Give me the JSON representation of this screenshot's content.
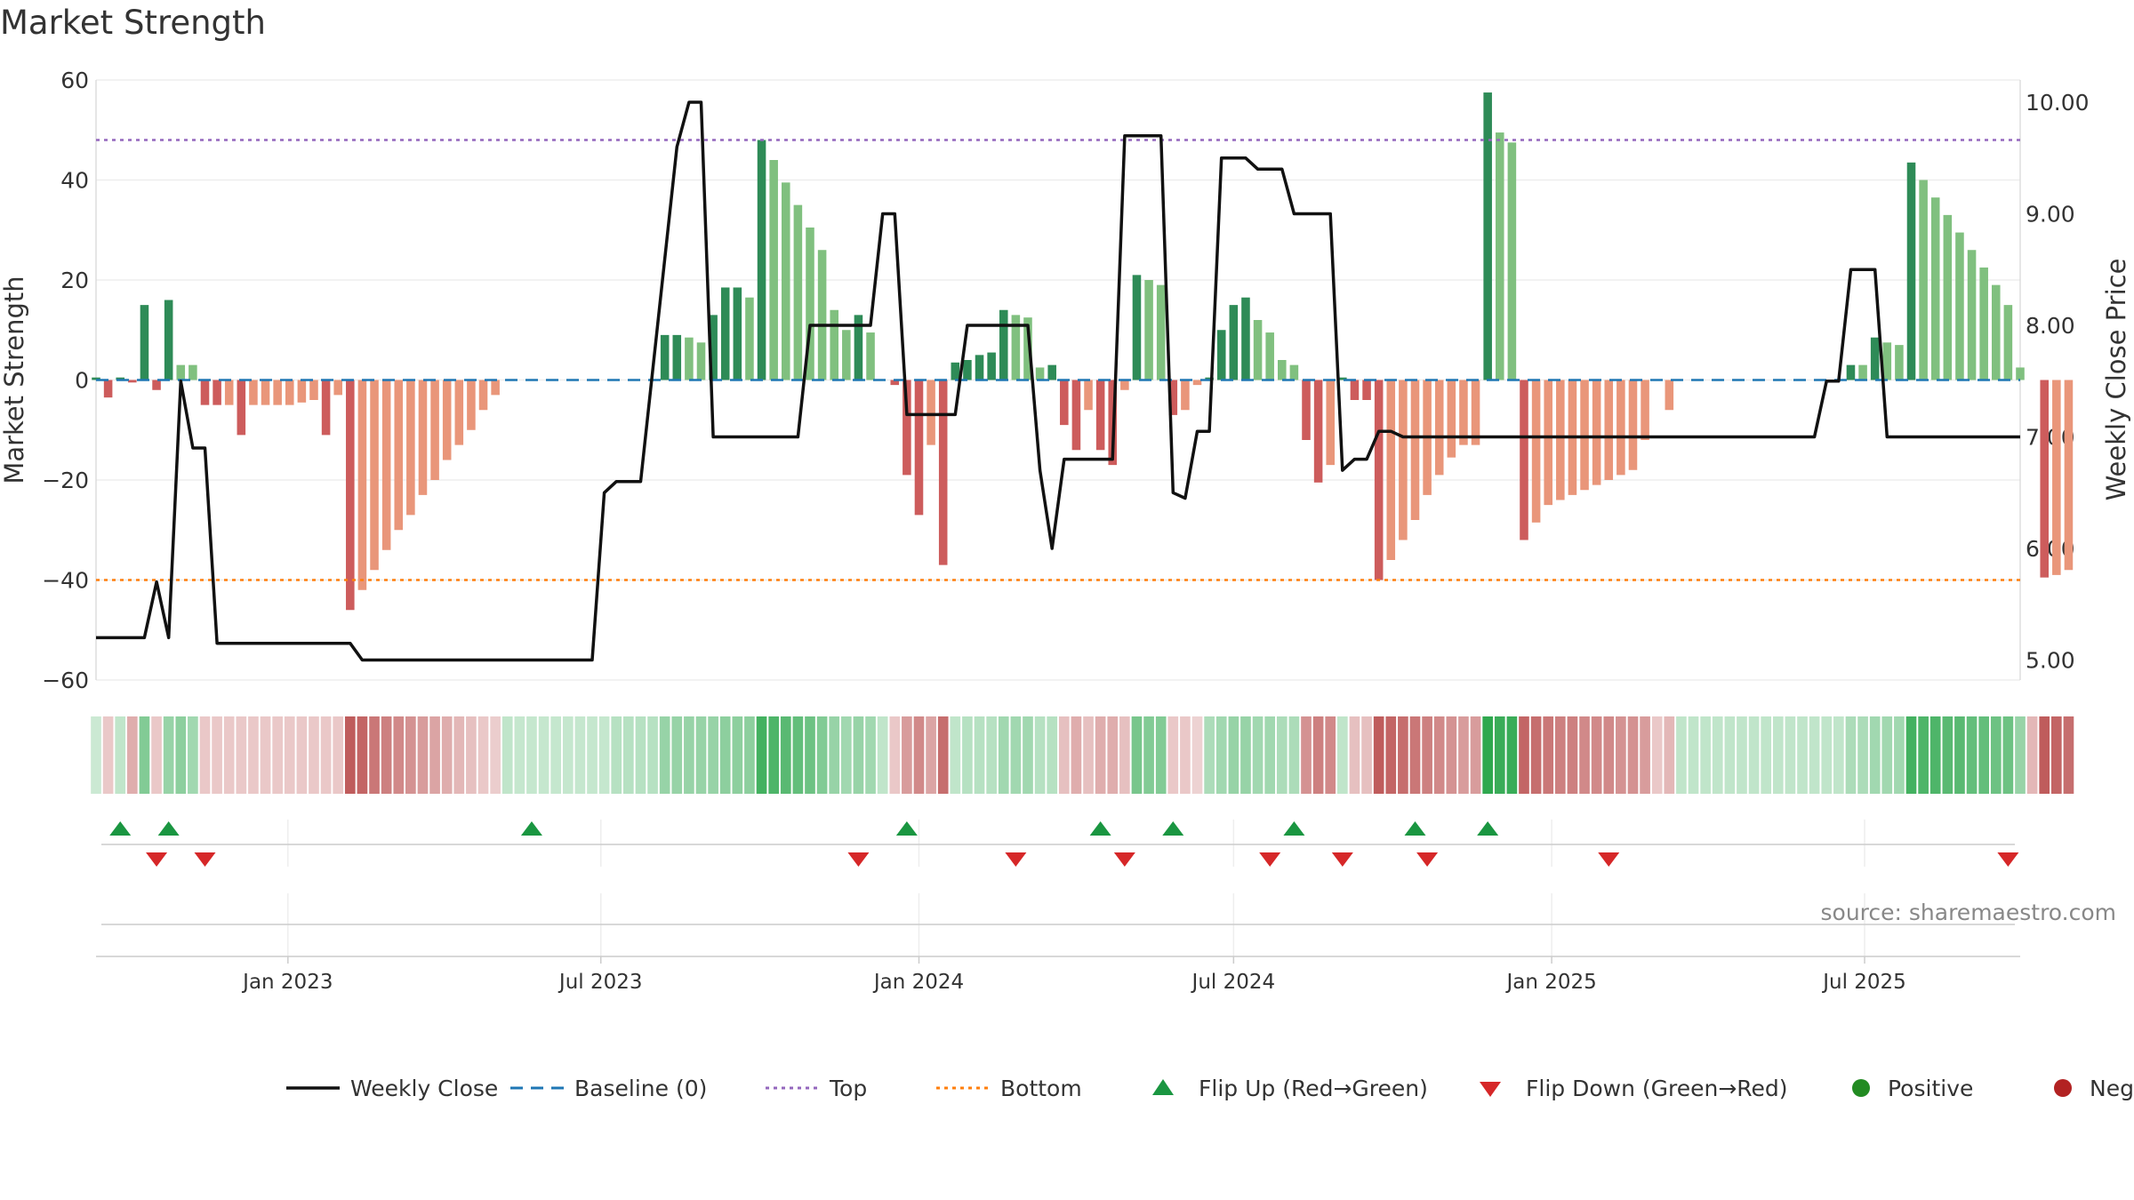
{
  "title": "Market Strength",
  "source": "source: sharemaestro.com",
  "colors": {
    "strong_green": "#2e8b57",
    "light_green": "#80c07f",
    "strong_red": "#cd5c5c",
    "light_red": "#e9967a",
    "weekly_close": "#111111",
    "baseline": "#1f77b4",
    "top": "#9467bd",
    "bottom": "#ff7f0e",
    "flip_up": "#1a9641",
    "flip_down": "#d62728",
    "positive": "#228b22",
    "negative": "#b22222"
  },
  "chart_data": {
    "type": "bar",
    "title": "Market Strength",
    "ylabel": "Market Strength",
    "y2label": "Weekly Close Price",
    "ylim": [
      -60,
      60
    ],
    "y2lim": [
      4.85,
      10.2
    ],
    "y_ticks": [
      60,
      40,
      20,
      0,
      -20,
      -40,
      -60
    ],
    "y_tick_labels": [
      "60",
      "40",
      "20",
      "0",
      "−20",
      "−40",
      "−60"
    ],
    "y2_ticks": [
      10,
      9,
      8,
      7,
      6,
      5
    ],
    "y2_tick_labels": [
      "10.00",
      "9.00",
      "8.00",
      "7.00",
      "6.00",
      "5.00"
    ],
    "x_range": [
      "2022-09-12",
      "2025-09-29"
    ],
    "x_ticks": [
      "2023-01-01",
      "2023-07-01",
      "2024-01-01",
      "2024-07-01",
      "2025-01-01",
      "2025-07-01"
    ],
    "x_tick_labels": [
      "Jan 2023",
      "Jul 2023",
      "Jan 2024",
      "Jul 2024",
      "Jan 2025",
      "Jul 2025"
    ],
    "top_line": 48,
    "bottom_line": -40,
    "baseline": 0,
    "start_date": "2022-09-12",
    "week_step_days": 7,
    "strength": [
      0.5,
      -3.5,
      0.5,
      -0.5,
      15,
      -2,
      16,
      3,
      3,
      -5,
      -5,
      -5,
      -11,
      -5,
      -5,
      -5,
      -5,
      -4.5,
      -4,
      -11,
      -3,
      -46,
      -42,
      -38,
      -34,
      -30,
      -27,
      -23,
      -20,
      -16,
      -13,
      -10,
      -6,
      -3,
      0,
      0,
      0,
      0,
      0,
      0,
      0,
      0,
      0,
      0,
      0,
      0,
      0,
      9,
      9,
      8.5,
      7.5,
      13,
      18.5,
      18.5,
      16.5,
      48,
      44,
      39.5,
      35,
      30.5,
      26,
      14,
      10,
      13,
      9.5,
      0,
      -1,
      -19,
      -27,
      -13,
      -37,
      3.5,
      4,
      5,
      5.5,
      14,
      13,
      12.5,
      2.5,
      3,
      -9,
      -14,
      -6,
      -14,
      -17,
      -2,
      21,
      20,
      19,
      -7,
      -6,
      -1,
      0.5,
      10,
      15,
      16.5,
      12,
      9.5,
      4,
      3,
      -12,
      -20.5,
      -17,
      0.5,
      -4,
      -4,
      -40,
      -36,
      -32,
      -28,
      -23,
      -19,
      -15.5,
      -13,
      -13,
      57.5,
      49.5,
      47.5,
      -32,
      -28.5,
      -25,
      -24,
      -23,
      -22,
      -21,
      -20,
      -19,
      -18,
      -12,
      0,
      -6,
      0,
      0,
      0,
      0,
      0,
      0,
      0,
      0,
      0,
      0,
      0,
      0,
      0,
      0,
      3,
      3,
      8.5,
      7.5,
      7,
      43.5,
      40,
      36.5,
      33,
      29.5,
      26,
      22.5,
      19,
      15,
      2.5,
      0,
      -39.5,
      -39,
      -38
    ],
    "category": [
      "sg",
      "sr",
      "sg",
      "sr",
      "sg",
      "sr",
      "sg",
      "lg",
      "lg",
      "sr",
      "sr",
      "lr",
      "sr",
      "lr",
      "lr",
      "lr",
      "lr",
      "lr",
      "lr",
      "sr",
      "lr",
      "sr",
      "lr",
      "lr",
      "lr",
      "lr",
      "lr",
      "lr",
      "lr",
      "lr",
      "lr",
      "lr",
      "lr",
      "lr",
      "lg",
      "lg",
      "lg",
      "lg",
      "lg",
      "lg",
      "lg",
      "lg",
      "lg",
      "lg",
      "lg",
      "lg",
      "lg",
      "sg",
      "sg",
      "lg",
      "lg",
      "sg",
      "sg",
      "sg",
      "lg",
      "sg",
      "lg",
      "lg",
      "lg",
      "lg",
      "lg",
      "lg",
      "lg",
      "sg",
      "lg",
      "lg",
      "sr",
      "sr",
      "sr",
      "lr",
      "sr",
      "sg",
      "sg",
      "sg",
      "sg",
      "sg",
      "lg",
      "lg",
      "lg",
      "sg",
      "sr",
      "sr",
      "lr",
      "sr",
      "sr",
      "lr",
      "sg",
      "lg",
      "lg",
      "sr",
      "lr",
      "lr",
      "sg",
      "sg",
      "sg",
      "sg",
      "lg",
      "lg",
      "lg",
      "lg",
      "sr",
      "sr",
      "lr",
      "sg",
      "sr",
      "sr",
      "sr",
      "lr",
      "lr",
      "lr",
      "lr",
      "lr",
      "lr",
      "lr",
      "lr",
      "sg",
      "lg",
      "lg",
      "sr",
      "lr",
      "lr",
      "lr",
      "lr",
      "lr",
      "lr",
      "lr",
      "lr",
      "lr",
      "lr",
      "lr",
      "lr",
      "lg",
      "lg",
      "lg",
      "lg",
      "lg",
      "lg",
      "lg",
      "lg",
      "lg",
      "lg",
      "lg",
      "lg",
      "lg",
      "lg",
      "sg",
      "lg",
      "sg",
      "lg",
      "lg",
      "sg",
      "lg",
      "lg",
      "lg",
      "lg",
      "lg",
      "lg",
      "lg",
      "lg",
      "lg",
      "lr",
      "sr",
      "lr",
      "lr"
    ],
    "heat": [
      0.25,
      0.3,
      0.3,
      0.45,
      0.6,
      0.3,
      0.5,
      0.55,
      0.45,
      0.3,
      0.3,
      0.3,
      0.3,
      0.3,
      0.3,
      0.3,
      0.3,
      0.3,
      0.3,
      0.3,
      0.3,
      0.9,
      0.85,
      0.75,
      0.7,
      0.65,
      0.6,
      0.55,
      0.5,
      0.45,
      0.4,
      0.35,
      0.3,
      0.28,
      0.3,
      0.28,
      0.28,
      0.28,
      0.28,
      0.28,
      0.28,
      0.28,
      0.28,
      0.35,
      0.35,
      0.35,
      0.35,
      0.5,
      0.5,
      0.5,
      0.5,
      0.5,
      0.55,
      0.55,
      0.55,
      0.9,
      0.85,
      0.8,
      0.75,
      0.7,
      0.6,
      0.5,
      0.45,
      0.5,
      0.45,
      0.3,
      0.3,
      0.55,
      0.65,
      0.5,
      0.8,
      0.3,
      0.35,
      0.35,
      0.35,
      0.45,
      0.45,
      0.45,
      0.35,
      0.35,
      0.35,
      0.45,
      0.35,
      0.45,
      0.45,
      0.35,
      0.65,
      0.6,
      0.6,
      0.3,
      0.3,
      0.25,
      0.4,
      0.45,
      0.5,
      0.5,
      0.45,
      0.45,
      0.4,
      0.4,
      0.6,
      0.7,
      0.65,
      0.3,
      0.35,
      0.35,
      0.9,
      0.85,
      0.8,
      0.75,
      0.7,
      0.65,
      0.6,
      0.55,
      0.55,
      1,
      0.95,
      0.95,
      0.85,
      0.8,
      0.75,
      0.7,
      0.7,
      0.65,
      0.65,
      0.65,
      0.6,
      0.6,
      0.55,
      0.3,
      0.4,
      0.3,
      0.3,
      0.3,
      0.3,
      0.3,
      0.3,
      0.3,
      0.3,
      0.3,
      0.3,
      0.3,
      0.3,
      0.3,
      0.3,
      0.4,
      0.4,
      0.45,
      0.45,
      0.45,
      0.9,
      0.85,
      0.85,
      0.8,
      0.8,
      0.75,
      0.75,
      0.7,
      0.7,
      0.5,
      0.4,
      0.9,
      0.85,
      0.8
    ],
    "weekly_close": [
      [
        "2022-09-12",
        5.2
      ],
      [
        "2022-10-10",
        5.2
      ],
      [
        "2022-10-17",
        5.7
      ],
      [
        "2022-10-24",
        5.2
      ],
      [
        "2022-10-31",
        7.5
      ],
      [
        "2022-11-07",
        6.9
      ],
      [
        "2022-11-14",
        6.9
      ],
      [
        "2022-11-21",
        5.15
      ],
      [
        "2023-02-06",
        5.15
      ],
      [
        "2023-02-13",
        5.0
      ],
      [
        "2023-06-26",
        5.0
      ],
      [
        "2023-07-03",
        6.5
      ],
      [
        "2023-07-10",
        6.6
      ],
      [
        "2023-07-24",
        6.6
      ],
      [
        "2023-08-07",
        8.6
      ],
      [
        "2023-08-14",
        9.6
      ],
      [
        "2023-08-21",
        10.0
      ],
      [
        "2023-08-28",
        10.0
      ],
      [
        "2023-09-04",
        7.0
      ],
      [
        "2023-10-23",
        7.0
      ],
      [
        "2023-10-30",
        8.0
      ],
      [
        "2023-12-04",
        8.0
      ],
      [
        "2023-12-11",
        9.0
      ],
      [
        "2023-12-18",
        9.0
      ],
      [
        "2023-12-25",
        7.2
      ],
      [
        "2024-01-22",
        7.2
      ],
      [
        "2024-01-29",
        8.0
      ],
      [
        "2024-03-04",
        8.0
      ],
      [
        "2024-03-11",
        6.7
      ],
      [
        "2024-03-18",
        6.0
      ],
      [
        "2024-03-25",
        6.8
      ],
      [
        "2024-04-22",
        6.8
      ],
      [
        "2024-04-29",
        9.7
      ],
      [
        "2024-05-20",
        9.7
      ],
      [
        "2024-05-27",
        6.5
      ],
      [
        "2024-06-03",
        6.45
      ],
      [
        "2024-06-10",
        7.05
      ],
      [
        "2024-06-17",
        7.05
      ],
      [
        "2024-06-24",
        9.5
      ],
      [
        "2024-07-08",
        9.5
      ],
      [
        "2024-07-15",
        9.4
      ],
      [
        "2024-07-29",
        9.4
      ],
      [
        "2024-08-05",
        9.0
      ],
      [
        "2024-08-26",
        9.0
      ],
      [
        "2024-09-02",
        6.7
      ],
      [
        "2024-09-09",
        6.8
      ],
      [
        "2024-09-16",
        6.8
      ],
      [
        "2024-09-23",
        7.05
      ],
      [
        "2024-09-30",
        7.05
      ],
      [
        "2024-10-07",
        7.0
      ],
      [
        "2025-06-02",
        7.0
      ],
      [
        "2025-06-09",
        7.5
      ],
      [
        "2025-06-16",
        7.5
      ],
      [
        "2025-06-23",
        8.5
      ],
      [
        "2025-07-07",
        8.5
      ],
      [
        "2025-07-14",
        7.0
      ],
      [
        "2025-09-29",
        7.0
      ]
    ],
    "flip_up_dates": [
      "2022-09-26",
      "2022-10-24",
      "2023-05-22",
      "2023-12-25",
      "2024-04-15",
      "2024-05-27",
      "2024-08-05",
      "2024-10-14",
      "2024-11-25"
    ],
    "flip_down_dates": [
      "2022-10-17",
      "2022-11-14",
      "2023-11-27",
      "2024-02-26",
      "2024-04-29",
      "2024-07-22",
      "2024-09-02",
      "2024-10-21",
      "2025-02-03",
      "2025-09-22"
    ],
    "legend": [
      {
        "label": "Weekly Close",
        "kind": "line",
        "color": "#111111"
      },
      {
        "label": "Baseline (0)",
        "kind": "dash",
        "color": "#1f77b4"
      },
      {
        "label": "Top",
        "kind": "dot",
        "color": "#9467bd"
      },
      {
        "label": "Bottom",
        "kind": "dot",
        "color": "#ff7f0e"
      },
      {
        "label": "Flip Up (Red→Green)",
        "kind": "tri-up",
        "color": "#1a9641"
      },
      {
        "label": "Flip Down (Green→Red)",
        "kind": "tri-down",
        "color": "#d62728"
      },
      {
        "label": "Positive",
        "kind": "circle",
        "color": "#228b22"
      },
      {
        "label": "Negative",
        "kind": "circle",
        "color": "#b22222"
      }
    ],
    "grid": true,
    "legend_position": "bottom-center"
  }
}
